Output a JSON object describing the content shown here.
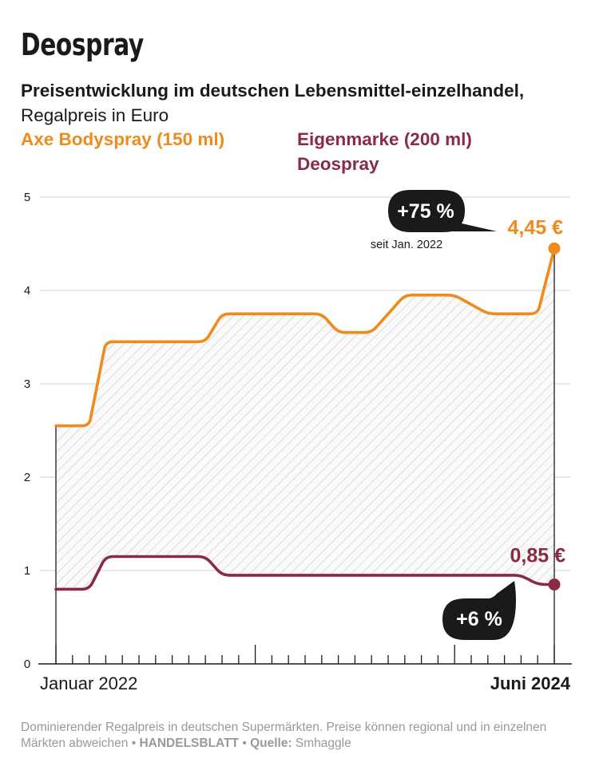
{
  "title": "Deospray",
  "subtitle": {
    "bold": "Preisentwicklung im deutschen Lebensmittel-einzelhandel,",
    "normal": " Regalpreis in Euro"
  },
  "legend": {
    "axe": "Axe Bodyspray (150 ml)",
    "eigen": "Eigenmarke (200 ml) Deospray"
  },
  "annotations": {
    "axe_change": "+75 %",
    "axe_change_note": "seit Jan. 2022",
    "axe_last_value": "4,45 €",
    "eigen_change": "+6 %",
    "eigen_last_value": "0,85 €"
  },
  "footer": {
    "text1": "Dominierender Regalpreis in deutschen Supermärkten. Preise können regional und in einzelnen Märkten abweichen • ",
    "brand": "HANDELSBLATT",
    "text2": " • ",
    "source_label": "Quelle:",
    "source": " Smhaggle"
  },
  "colors": {
    "axe": "#f08a1c",
    "eigen": "#8b2a45",
    "bubble": "#1a1a1a"
  },
  "chart_data": {
    "type": "line",
    "x_labels": [
      "Januar 2022",
      "Juni 2024"
    ],
    "ylim": [
      0,
      5
    ],
    "yticks": [
      0,
      1,
      2,
      3,
      4,
      5
    ],
    "grid": true,
    "x": [
      0,
      2,
      3,
      6,
      9,
      10,
      16,
      17,
      19,
      21,
      24,
      26,
      27,
      28,
      29,
      30
    ],
    "series": [
      {
        "name": "Axe Bodyspray (150 ml)",
        "values": [
          2.55,
          2.55,
          3.45,
          3.45,
          3.45,
          3.75,
          3.75,
          3.55,
          3.55,
          3.95,
          3.95,
          3.75,
          3.75,
          3.75,
          3.75,
          4.45
        ]
      },
      {
        "name": "Eigenmarke (200 ml) Deospray",
        "values": [
          0.8,
          0.8,
          1.15,
          1.15,
          1.15,
          0.95,
          0.95,
          0.95,
          0.95,
          0.95,
          0.95,
          0.95,
          0.95,
          0.95,
          0.85,
          0.85
        ]
      }
    ]
  }
}
